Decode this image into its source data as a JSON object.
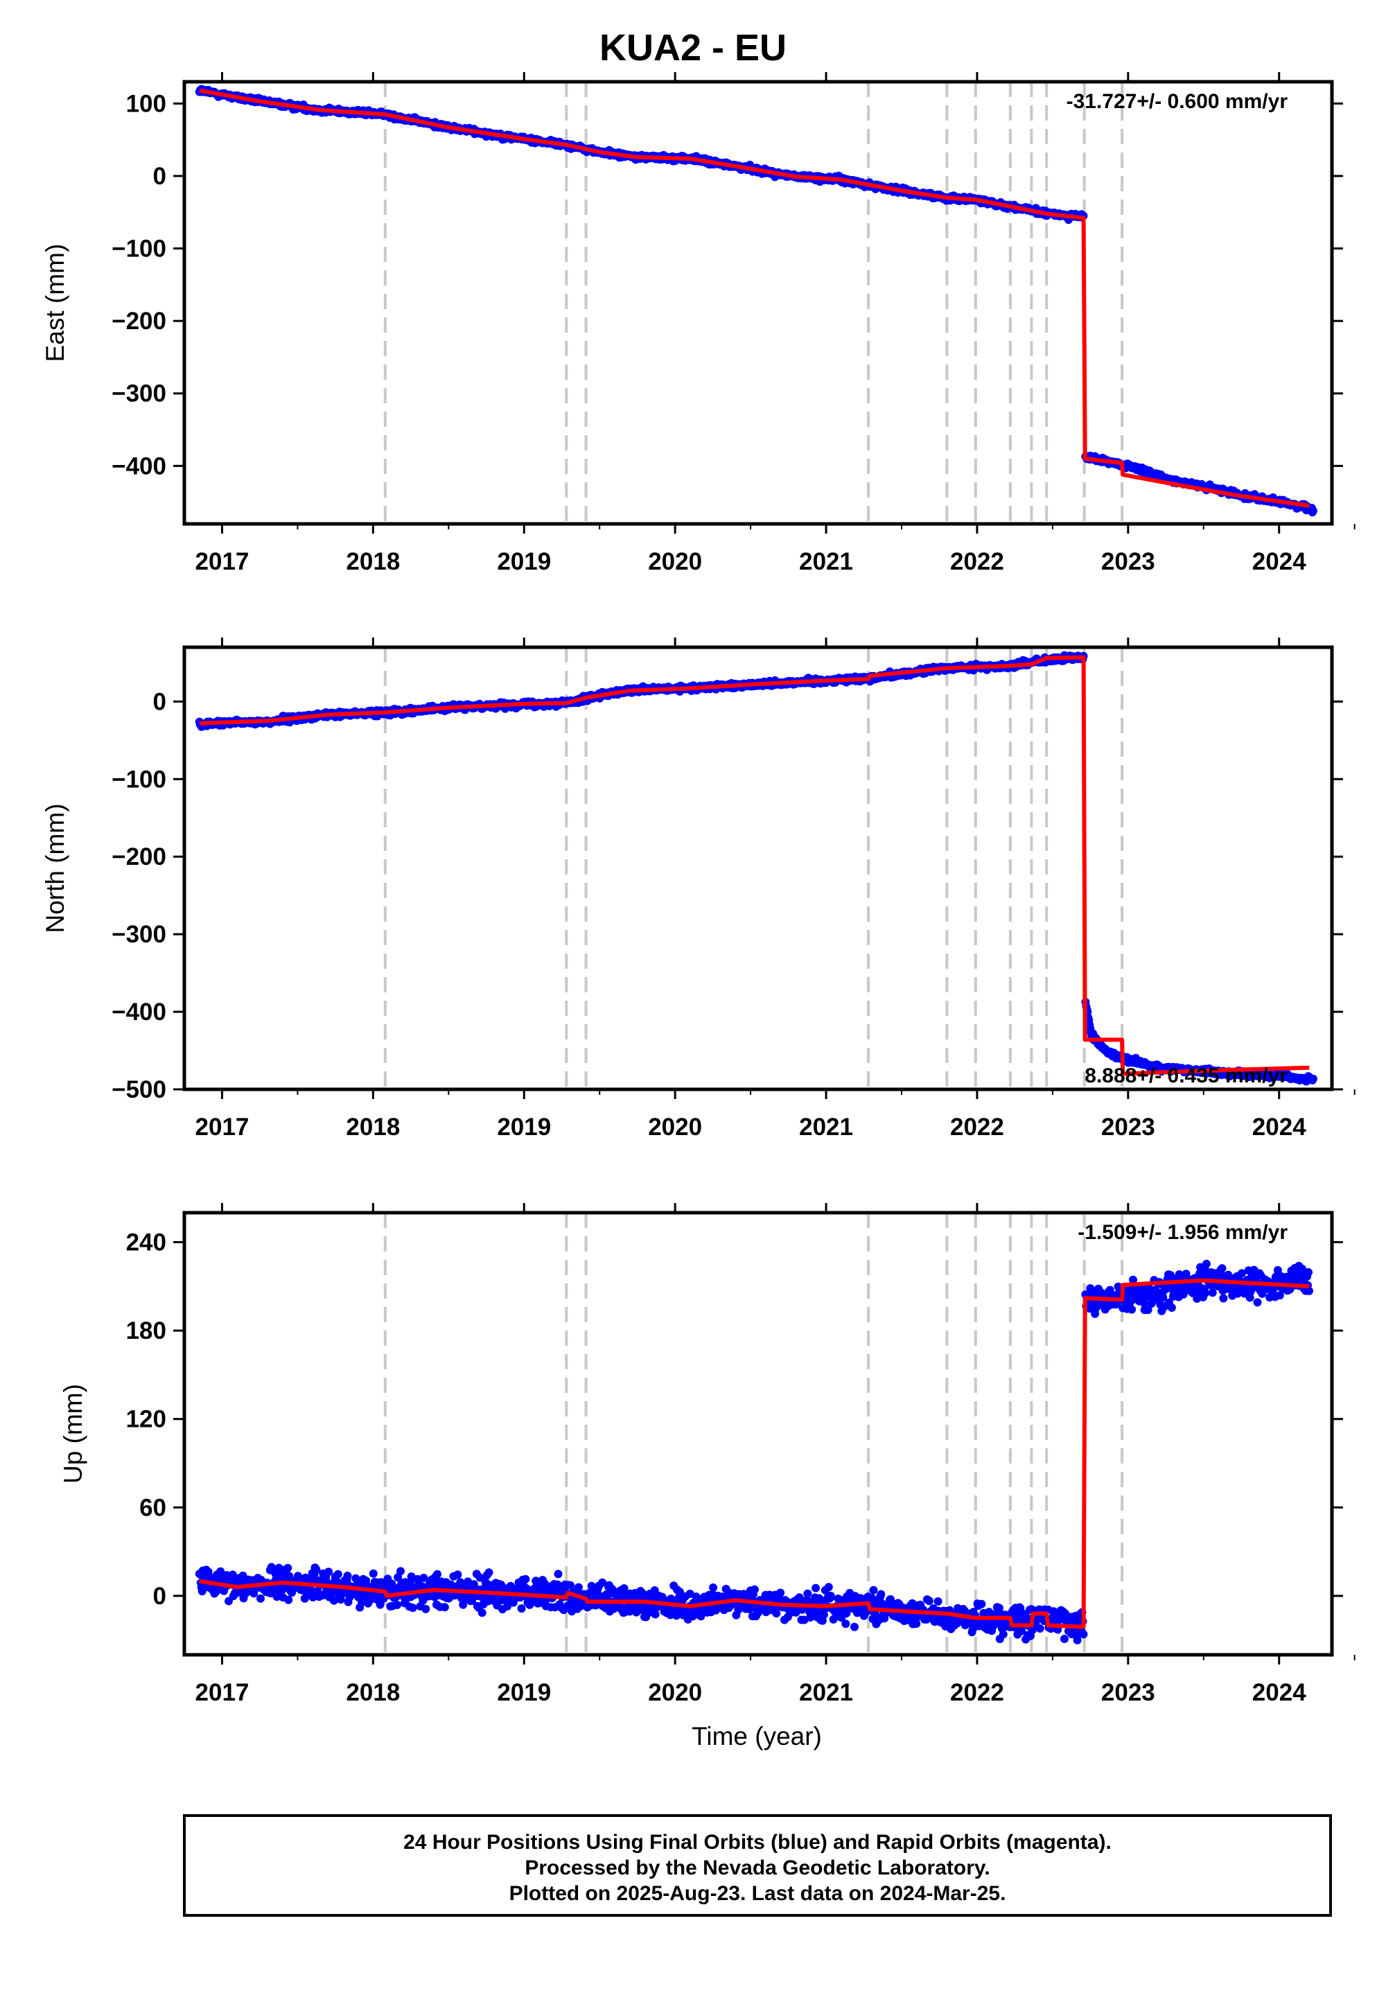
{
  "title": "KUA2 - EU",
  "colors": {
    "points": "#0000ff",
    "model": "#ff0000",
    "break_lines": "#c8c8c8",
    "frame": "#000000"
  },
  "chart_data": [
    {
      "type": "scatter",
      "component": "east",
      "ylabel": "East (mm)",
      "xlabel": "",
      "xlim": [
        2016.75,
        2024.35
      ],
      "ylim": [
        -480,
        130
      ],
      "yticks": [
        100,
        0,
        -100,
        -200,
        -300,
        -400
      ],
      "ytick_labels": [
        "100",
        "0",
        "−100",
        "−200",
        "−300",
        "−400"
      ],
      "xticks": [
        2017,
        2018,
        2019,
        2020,
        2021,
        2022,
        2023,
        2024
      ],
      "rate_label": "-31.727+/- 0.600 mm/yr",
      "rate_label_position": "top-right",
      "noise_mm": 2.5,
      "offset_events": [
        2018.08,
        2019.28,
        2019.41,
        2021.28,
        2021.8,
        2021.99,
        2022.22,
        2022.36,
        2022.46,
        2022.71,
        2022.96
      ],
      "model_line": [
        [
          2016.85,
          118
        ],
        [
          2017.25,
          103
        ],
        [
          2017.65,
          91
        ],
        [
          2018.08,
          85
        ],
        [
          2018.5,
          67
        ],
        [
          2019.0,
          51
        ],
        [
          2019.28,
          43
        ],
        [
          2019.5,
          33
        ],
        [
          2019.75,
          26
        ],
        [
          2020.1,
          24
        ],
        [
          2020.5,
          10
        ],
        [
          2020.8,
          -1
        ],
        [
          2021.1,
          -5
        ],
        [
          2021.28,
          -12
        ],
        [
          2021.55,
          -22
        ],
        [
          2021.8,
          -30
        ],
        [
          2022.0,
          -33
        ],
        [
          2022.22,
          -42
        ],
        [
          2022.46,
          -52
        ],
        [
          2022.705,
          -58
        ],
        [
          2022.715,
          -390
        ],
        [
          2022.96,
          -396
        ],
        [
          2022.965,
          -412
        ],
        [
          2023.3,
          -425
        ],
        [
          2023.7,
          -440
        ],
        [
          2024.2,
          -455
        ]
      ],
      "points_trend": [
        [
          2016.85,
          118
        ],
        [
          2017.25,
          103
        ],
        [
          2017.65,
          91
        ],
        [
          2018.08,
          85
        ],
        [
          2018.5,
          67
        ],
        [
          2019.0,
          51
        ],
        [
          2019.28,
          43
        ],
        [
          2019.5,
          33
        ],
        [
          2019.75,
          26
        ],
        [
          2020.1,
          24
        ],
        [
          2020.5,
          10
        ],
        [
          2020.8,
          -1
        ],
        [
          2021.1,
          -5
        ],
        [
          2021.28,
          -12
        ],
        [
          2021.55,
          -22
        ],
        [
          2021.8,
          -30
        ],
        [
          2022.0,
          -33
        ],
        [
          2022.22,
          -42
        ],
        [
          2022.46,
          -52
        ],
        [
          2022.705,
          -56
        ],
        [
          2022.715,
          -388
        ],
        [
          2022.96,
          -398
        ],
        [
          2023.3,
          -420
        ],
        [
          2023.7,
          -438
        ],
        [
          2024.2,
          -458
        ],
        [
          2024.23,
          -463
        ]
      ]
    },
    {
      "type": "scatter",
      "component": "north",
      "ylabel": "North (mm)",
      "xlabel": "",
      "xlim": [
        2016.75,
        2024.35
      ],
      "ylim": [
        -500,
        70
      ],
      "yticks": [
        0,
        -100,
        -200,
        -300,
        -400,
        -500
      ],
      "ytick_labels": [
        "0",
        "−100",
        "−200",
        "−300",
        "−400",
        "−500"
      ],
      "xticks": [
        2017,
        2018,
        2019,
        2020,
        2021,
        2022,
        2023,
        2024
      ],
      "rate_label": "8.888+/- 0.435 mm/yr",
      "rate_label_position": "bottom-right",
      "noise_mm": 2.5,
      "offset_events": [
        2018.08,
        2019.28,
        2019.41,
        2021.28,
        2021.8,
        2021.99,
        2022.22,
        2022.36,
        2022.46,
        2022.71,
        2022.96
      ],
      "model_line": [
        [
          2016.85,
          -28
        ],
        [
          2017.3,
          -25
        ],
        [
          2017.7,
          -17
        ],
        [
          2018.08,
          -14
        ],
        [
          2018.5,
          -8
        ],
        [
          2019.0,
          -3
        ],
        [
          2019.28,
          -2
        ],
        [
          2019.41,
          5
        ],
        [
          2019.7,
          14
        ],
        [
          2020.1,
          17
        ],
        [
          2020.5,
          22
        ],
        [
          2021.0,
          27
        ],
        [
          2021.28,
          29
        ],
        [
          2021.29,
          33
        ],
        [
          2021.8,
          43
        ],
        [
          2022.22,
          46
        ],
        [
          2022.36,
          48
        ],
        [
          2022.46,
          56
        ],
        [
          2022.705,
          57
        ],
        [
          2022.715,
          -436
        ],
        [
          2022.96,
          -436
        ],
        [
          2022.965,
          -480
        ],
        [
          2023.5,
          -476
        ],
        [
          2024.2,
          -472
        ]
      ],
      "points_trend": [
        [
          2016.85,
          -29
        ],
        [
          2017.3,
          -26
        ],
        [
          2017.7,
          -17
        ],
        [
          2018.08,
          -14
        ],
        [
          2018.5,
          -8
        ],
        [
          2019.0,
          -3
        ],
        [
          2019.28,
          -2
        ],
        [
          2019.41,
          5
        ],
        [
          2019.7,
          14
        ],
        [
          2020.1,
          17
        ],
        [
          2020.5,
          22
        ],
        [
          2021.0,
          27
        ],
        [
          2021.28,
          30
        ],
        [
          2021.8,
          43
        ],
        [
          2022.22,
          46
        ],
        [
          2022.46,
          53
        ],
        [
          2022.705,
          57
        ],
        [
          2022.715,
          -385
        ],
        [
          2022.76,
          -430
        ],
        [
          2022.85,
          -450
        ],
        [
          2022.96,
          -460
        ],
        [
          2023.2,
          -472
        ],
        [
          2023.6,
          -478
        ],
        [
          2024.0,
          -482
        ],
        [
          2024.23,
          -488
        ]
      ]
    },
    {
      "type": "scatter",
      "component": "up",
      "ylabel": "Up (mm)",
      "xlabel": "Time (year)",
      "xlim": [
        2016.75,
        2024.35
      ],
      "ylim": [
        -40,
        260
      ],
      "yticks": [
        240,
        180,
        120,
        60,
        0
      ],
      "ytick_labels": [
        "240",
        "180",
        "120",
        "60",
        "0"
      ],
      "xticks": [
        2017,
        2018,
        2019,
        2020,
        2021,
        2022,
        2023,
        2024
      ],
      "rate_label": "-1.509+/- 1.956 mm/yr",
      "rate_label_position": "top-right",
      "noise_mm": 7,
      "offset_events": [
        2018.08,
        2019.28,
        2019.41,
        2021.28,
        2021.8,
        2021.99,
        2022.22,
        2022.36,
        2022.46,
        2022.71,
        2022.96
      ],
      "model_line": [
        [
          2016.85,
          10
        ],
        [
          2017.1,
          6
        ],
        [
          2017.4,
          9
        ],
        [
          2017.8,
          6
        ],
        [
          2018.08,
          3
        ],
        [
          2018.09,
          0
        ],
        [
          2018.4,
          4
        ],
        [
          2018.8,
          2
        ],
        [
          2019.28,
          -1
        ],
        [
          2019.29,
          2
        ],
        [
          2019.41,
          -2
        ],
        [
          2019.42,
          -4
        ],
        [
          2019.8,
          -4
        ],
        [
          2020.1,
          -7
        ],
        [
          2020.4,
          -3
        ],
        [
          2020.7,
          -6
        ],
        [
          2021.0,
          -7
        ],
        [
          2021.28,
          -5
        ],
        [
          2021.29,
          -9
        ],
        [
          2021.6,
          -11
        ],
        [
          2021.8,
          -12
        ],
        [
          2021.99,
          -15
        ],
        [
          2022.22,
          -15
        ],
        [
          2022.23,
          -20
        ],
        [
          2022.36,
          -20
        ],
        [
          2022.37,
          -12
        ],
        [
          2022.46,
          -12
        ],
        [
          2022.47,
          -20
        ],
        [
          2022.705,
          -21
        ],
        [
          2022.715,
          202
        ],
        [
          2022.96,
          201
        ],
        [
          2022.965,
          211
        ],
        [
          2023.5,
          214
        ],
        [
          2024.2,
          210
        ]
      ],
      "points_trend": [
        [
          2016.85,
          10
        ],
        [
          2017.1,
          6
        ],
        [
          2017.4,
          9
        ],
        [
          2017.8,
          6
        ],
        [
          2018.08,
          3
        ],
        [
          2018.4,
          4
        ],
        [
          2018.8,
          2
        ],
        [
          2019.28,
          0
        ],
        [
          2019.41,
          -3
        ],
        [
          2019.8,
          -4
        ],
        [
          2020.1,
          -7
        ],
        [
          2020.4,
          -3
        ],
        [
          2020.7,
          -6
        ],
        [
          2021.0,
          -7
        ],
        [
          2021.28,
          -6
        ],
        [
          2021.6,
          -11
        ],
        [
          2021.99,
          -15
        ],
        [
          2022.22,
          -17
        ],
        [
          2022.36,
          -15
        ],
        [
          2022.46,
          -16
        ],
        [
          2022.705,
          -20
        ],
        [
          2022.715,
          200
        ],
        [
          2022.96,
          202
        ],
        [
          2023.5,
          212
        ],
        [
          2024.2,
          212
        ]
      ]
    }
  ],
  "footer": {
    "line1": "24 Hour Positions Using Final Orbits (blue) and Rapid Orbits (magenta).",
    "line2": "Processed by the Nevada Geodetic Laboratory.",
    "line3": "Plotted on 2025-Aug-23. Last data on 2024-Mar-25."
  }
}
